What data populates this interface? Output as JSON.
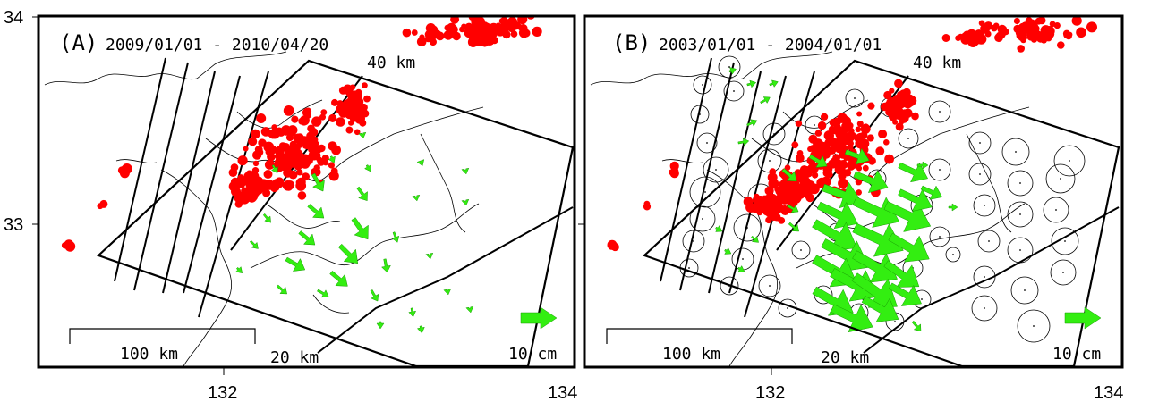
{
  "axis": {
    "lat_top": "34",
    "lat_mid": "33",
    "lon_a_132": "132",
    "lon_a_134": "134",
    "lon_b_132": "132",
    "lon_b_134": "134"
  },
  "panel_a": {
    "letter": "(A)",
    "date_range": "2009/01/01 - 2010/04/20",
    "depth_top": "40 km",
    "depth_bottom": "20 km",
    "scale_bar": "100 km",
    "arrow_scale": "10 cm"
  },
  "panel_b": {
    "letter": "(B)",
    "date_range": "2003/01/01 - 2004/01/01",
    "depth_top": "40 km",
    "depth_bottom": "20 km",
    "scale_bar": "100 km",
    "arrow_scale": "10 cm"
  },
  "colors": {
    "earthquake": "#ff0000",
    "displacement_arrow": "#33ee11"
  }
}
